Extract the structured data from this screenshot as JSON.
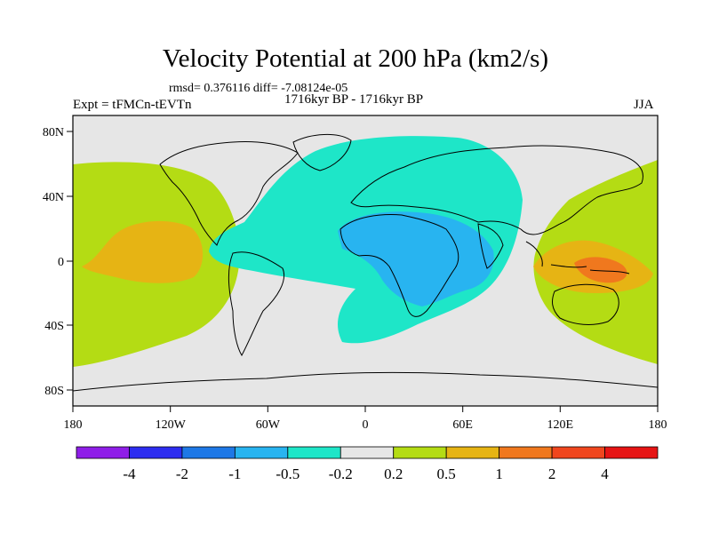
{
  "title": "Velocity Potential at 200 hPa (km2/s)",
  "stats_line": "rmsd= 0.376116 diff= -7.08124e-05",
  "experiment_label": "Expt = tFMCn-tEVTn",
  "period_label": "1716kyr BP - 1716kyr BP",
  "season_label": "JJA",
  "map": {
    "lon_ticks": [
      "180",
      "120W",
      "60W",
      "0",
      "60E",
      "120E",
      "180"
    ],
    "lat_ticks": [
      "80N",
      "40N",
      "0",
      "40S",
      "80S"
    ],
    "land_color": "#e6e6e6"
  },
  "colorbar": {
    "colors": [
      "#8f1ee8",
      "#2d2df0",
      "#1e78e6",
      "#28b4f0",
      "#1ee6c8",
      "#e6e6e6",
      "#b4dc14",
      "#e6b414",
      "#f0781e",
      "#f0461e",
      "#e61414"
    ],
    "labels": [
      "-4",
      "-2",
      "-1",
      "-0.5",
      "-0.2",
      "0.2",
      "0.5",
      "1",
      "2",
      "4"
    ]
  }
}
